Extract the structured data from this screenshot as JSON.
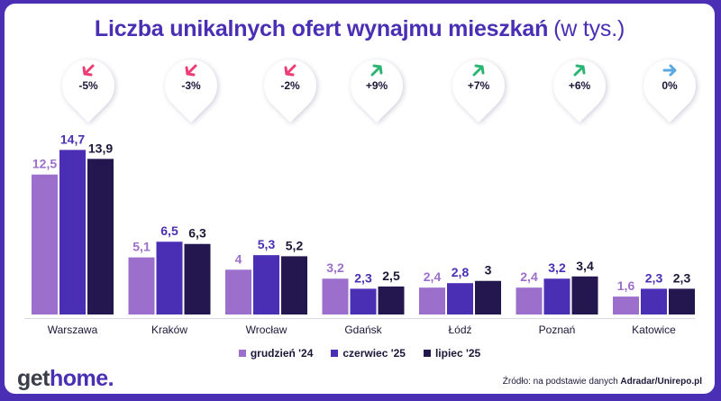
{
  "chart_data": {
    "type": "bar",
    "title": "Liczba unikalnych ofert wynajmu mieszkań",
    "title_suffix": "(w tys.)",
    "categories": [
      "Warszawa",
      "Kraków",
      "Wrocław",
      "Gdańsk",
      "Łódź",
      "Poznań",
      "Katowice"
    ],
    "series": [
      {
        "name": "grudzień '24",
        "values": [
          12.5,
          5.1,
          4.0,
          3.2,
          2.4,
          2.4,
          1.6
        ],
        "labels": [
          "12,5",
          "5,1",
          "4",
          "3,2",
          "2,4",
          "2,4",
          "1,6"
        ],
        "color": "#9b6fcb",
        "label_color": "#9b6fcb"
      },
      {
        "name": "czerwiec '25",
        "values": [
          14.7,
          6.5,
          5.3,
          2.3,
          2.8,
          3.2,
          2.3
        ],
        "labels": [
          "14,7",
          "6,5",
          "5,3",
          "2,3",
          "2,8",
          "3,2",
          "2,3"
        ],
        "color": "#4a2fb4",
        "label_color": "#4a2fb4"
      },
      {
        "name": "lipiec '25",
        "values": [
          13.9,
          6.3,
          5.2,
          2.5,
          3.0,
          3.4,
          2.3
        ],
        "labels": [
          "13,9",
          "6,3",
          "5,2",
          "2,5",
          "3",
          "3,4",
          "2,3"
        ],
        "color": "#24164f",
        "label_color": "#1c1638"
      }
    ],
    "ylim": [
      0,
      16.5
    ],
    "changes": [
      {
        "label": "-5%",
        "direction": "down",
        "color": "#ee3d74"
      },
      {
        "label": "-3%",
        "direction": "down",
        "color": "#ee3d74"
      },
      {
        "label": "-2%",
        "direction": "down",
        "color": "#ee3d74"
      },
      {
        "label": "+9%",
        "direction": "up",
        "color": "#2bb673"
      },
      {
        "label": "+7%",
        "direction": "up",
        "color": "#2bb673"
      },
      {
        "label": "+6%",
        "direction": "up",
        "color": "#2bb673"
      },
      {
        "label": "0%",
        "direction": "right",
        "color": "#5aa8e0"
      }
    ]
  },
  "legend": [
    "grudzień '24",
    "czerwiec '25",
    "lipiec '25"
  ],
  "footer": {
    "logo_part1": "get",
    "logo_part2": "home.",
    "source_prefix": "Źródło: na podstawie danych ",
    "source_bold": "Adradar/Unirepo.pl"
  }
}
